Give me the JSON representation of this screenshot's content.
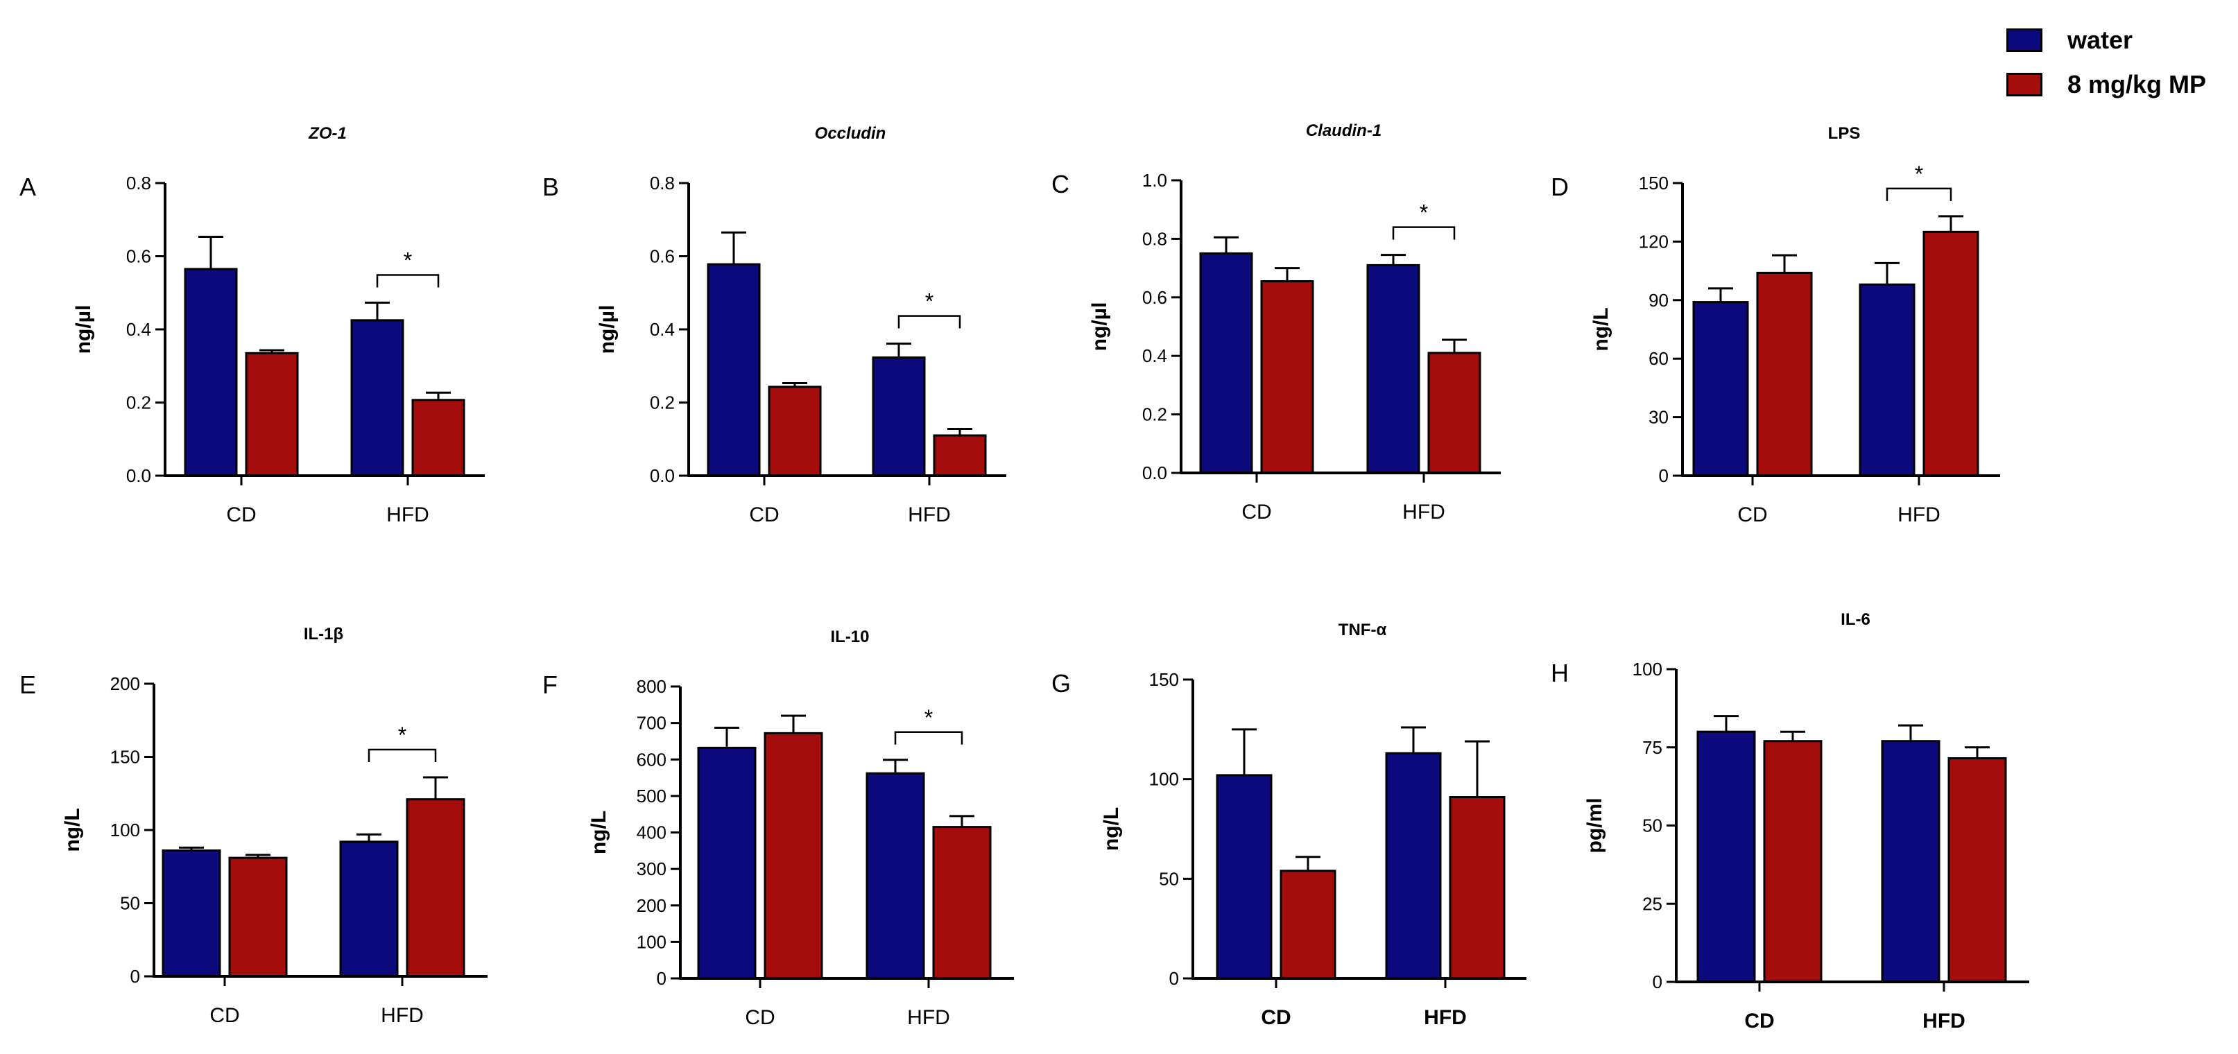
{
  "figure": {
    "colors": {
      "water": "#0c0a7c",
      "mp": "#a50c0c",
      "axis": "#000000"
    },
    "legend": [
      {
        "label": "water",
        "color": "#0c0a7c"
      },
      {
        "label": "8 mg/kg MP",
        "color": "#a50c0c"
      }
    ]
  },
  "chart_data": [
    {
      "panel": "A",
      "title": "ZO-1",
      "title_italic": true,
      "type": "bar",
      "ylabel": "ng/µl",
      "categories": [
        "CD",
        "HFD"
      ],
      "ylim": [
        0,
        0.8
      ],
      "yticks": [
        "0.0",
        "0.2",
        "0.4",
        "0.6",
        "0.8"
      ],
      "series": [
        {
          "name": "water",
          "values": [
            0.565,
            0.425
          ],
          "errors": [
            0.088,
            0.048
          ]
        },
        {
          "name": "8 mg/kg MP",
          "values": [
            0.335,
            0.207
          ],
          "errors": [
            0.008,
            0.02
          ]
        }
      ],
      "significance": [
        {
          "category": "HFD",
          "label": "*"
        }
      ]
    },
    {
      "panel": "B",
      "title": "Occludin",
      "title_italic": true,
      "type": "bar",
      "ylabel": "ng/µl",
      "categories": [
        "CD",
        "HFD"
      ],
      "ylim": [
        0,
        0.8
      ],
      "yticks": [
        "0.0",
        "0.2",
        "0.4",
        "0.6",
        "0.8"
      ],
      "series": [
        {
          "name": "water",
          "values": [
            0.578,
            0.323
          ],
          "errors": [
            0.087,
            0.038
          ]
        },
        {
          "name": "8 mg/kg MP",
          "values": [
            0.243,
            0.11
          ],
          "errors": [
            0.01,
            0.018
          ]
        }
      ],
      "significance": [
        {
          "category": "HFD",
          "label": "*"
        }
      ]
    },
    {
      "panel": "C",
      "title": "Claudin-1",
      "title_italic": true,
      "type": "bar",
      "ylabel": "ng/µl",
      "categories": [
        "CD",
        "HFD"
      ],
      "ylim": [
        0,
        1.0
      ],
      "yticks": [
        "0.0",
        "0.2",
        "0.4",
        "0.6",
        "0.8",
        "1.0"
      ],
      "series": [
        {
          "name": "water",
          "values": [
            0.75,
            0.71
          ],
          "errors": [
            0.055,
            0.035
          ]
        },
        {
          "name": "8 mg/kg MP",
          "values": [
            0.655,
            0.41
          ],
          "errors": [
            0.045,
            0.045
          ]
        }
      ],
      "significance": [
        {
          "category": "HFD",
          "label": "*"
        }
      ]
    },
    {
      "panel": "D",
      "title": "LPS",
      "title_italic": false,
      "type": "bar",
      "ylabel": "ng/L",
      "categories": [
        "CD",
        "HFD"
      ],
      "ylim": [
        0,
        150
      ],
      "yticks": [
        "0",
        "30",
        "60",
        "90",
        "120",
        "150"
      ],
      "series": [
        {
          "name": "water",
          "values": [
            89,
            98
          ],
          "errors": [
            7,
            11
          ]
        },
        {
          "name": "8 mg/kg MP",
          "values": [
            104,
            125
          ],
          "errors": [
            9,
            8
          ]
        }
      ],
      "significance": [
        {
          "category": "HFD",
          "label": "*"
        }
      ]
    },
    {
      "panel": "E",
      "title": "IL-1β",
      "title_italic": false,
      "type": "bar",
      "ylabel": "ng/L",
      "categories": [
        "CD",
        "HFD"
      ],
      "ylim": [
        0,
        200
      ],
      "yticks": [
        "0",
        "50",
        "100",
        "150",
        "200"
      ],
      "series": [
        {
          "name": "water",
          "values": [
            86,
            92
          ],
          "errors": [
            2,
            5
          ]
        },
        {
          "name": "8 mg/kg MP",
          "values": [
            81,
            121
          ],
          "errors": [
            2,
            15
          ]
        }
      ],
      "significance": [
        {
          "category": "HFD",
          "label": "*"
        }
      ]
    },
    {
      "panel": "F",
      "title": "IL-10",
      "title_italic": false,
      "type": "bar",
      "ylabel": "ng/L",
      "categories": [
        "CD",
        "HFD"
      ],
      "ylim": [
        0,
        800
      ],
      "yticks": [
        "0",
        "100",
        "200",
        "300",
        "400",
        "500",
        "600",
        "700",
        "800"
      ],
      "series": [
        {
          "name": "water",
          "values": [
            632,
            562
          ],
          "errors": [
            55,
            37
          ]
        },
        {
          "name": "8 mg/kg MP",
          "values": [
            672,
            415
          ],
          "errors": [
            48,
            30
          ]
        }
      ],
      "significance": [
        {
          "category": "HFD",
          "label": "*"
        }
      ]
    },
    {
      "panel": "G",
      "title": "TNF-α",
      "title_italic": false,
      "type": "bar",
      "ylabel": "ng/L",
      "categories": [
        "CD",
        "HFD"
      ],
      "ylim": [
        0,
        150
      ],
      "yticks": [
        "0",
        "50",
        "100",
        "150"
      ],
      "series": [
        {
          "name": "water",
          "values": [
            102,
            113
          ],
          "errors": [
            23,
            13
          ]
        },
        {
          "name": "8 mg/kg MP",
          "values": [
            54,
            91
          ],
          "errors": [
            7,
            28
          ]
        }
      ],
      "significance": []
    },
    {
      "panel": "H",
      "title": "IL-6",
      "title_italic": false,
      "type": "bar",
      "ylabel": "pg/ml",
      "categories": [
        "CD",
        "HFD"
      ],
      "ylim": [
        0,
        100
      ],
      "yticks": [
        "0",
        "25",
        "50",
        "75",
        "100"
      ],
      "series": [
        {
          "name": "water",
          "values": [
            80,
            77
          ],
          "errors": [
            5,
            5
          ]
        },
        {
          "name": "8 mg/kg MP",
          "values": [
            77,
            71.5
          ],
          "errors": [
            3,
            3.5
          ]
        }
      ],
      "significance": []
    }
  ]
}
